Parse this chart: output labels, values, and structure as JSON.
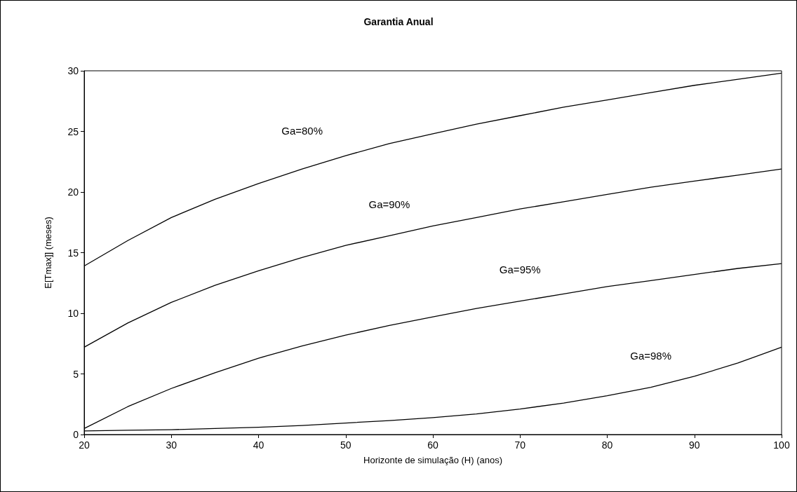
{
  "chart_data": {
    "type": "line",
    "title": "Garantia Anual",
    "xlabel": "Horizonte de simulação (H) (anos)",
    "ylabel": "E[Tmax]] (meses)",
    "x": [
      20,
      25,
      30,
      35,
      40,
      45,
      50,
      55,
      60,
      65,
      70,
      75,
      80,
      85,
      90,
      95,
      100
    ],
    "series": [
      {
        "name": "Ga=80%",
        "color": "#000000",
        "values": [
          13.9,
          16.0,
          17.9,
          19.4,
          20.7,
          21.9,
          23.0,
          24.0,
          24.8,
          25.6,
          26.3,
          27.0,
          27.6,
          28.2,
          28.8,
          29.3,
          29.8
        ]
      },
      {
        "name": "Ga=90%",
        "color": "#000000",
        "values": [
          7.2,
          9.2,
          10.9,
          12.3,
          13.5,
          14.6,
          15.6,
          16.4,
          17.2,
          17.9,
          18.6,
          19.2,
          19.8,
          20.4,
          20.9,
          21.4,
          21.9
        ]
      },
      {
        "name": "Ga=95%",
        "color": "#000000",
        "values": [
          0.5,
          2.3,
          3.8,
          5.1,
          6.3,
          7.3,
          8.2,
          9.0,
          9.7,
          10.4,
          11.0,
          11.6,
          12.2,
          12.7,
          13.2,
          13.7,
          14.1
        ]
      },
      {
        "name": "Ga=98%",
        "color": "#000000",
        "values": [
          0.3,
          0.35,
          0.4,
          0.5,
          0.6,
          0.75,
          0.95,
          1.15,
          1.4,
          1.7,
          2.1,
          2.6,
          3.2,
          3.9,
          4.8,
          5.9,
          7.2
        ]
      }
    ],
    "xlim": [
      20,
      100
    ],
    "xticks": [
      20,
      30,
      40,
      50,
      60,
      70,
      80,
      90,
      100
    ],
    "ylim": [
      0,
      30
    ],
    "yticks": [
      0,
      5,
      10,
      15,
      20,
      25,
      30
    ],
    "grid": false,
    "marker": "none",
    "line_style": "solid"
  }
}
